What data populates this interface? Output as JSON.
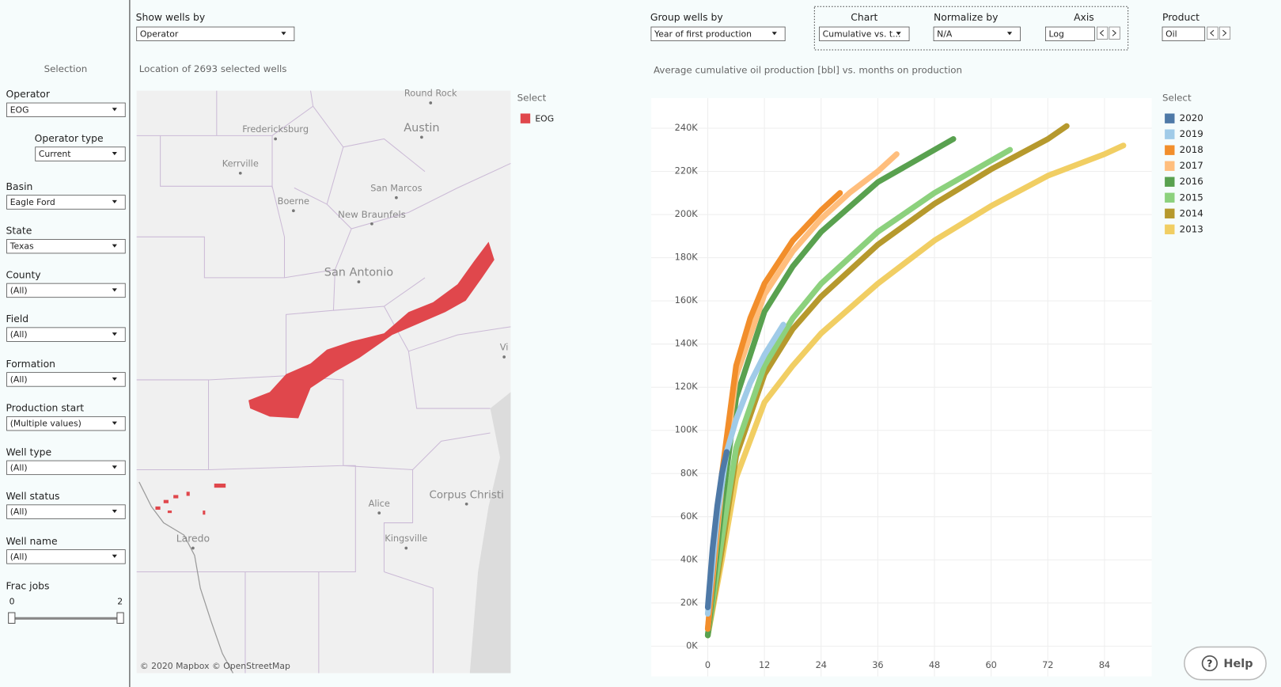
{
  "sidebar": {
    "title": "Selection",
    "filters": [
      {
        "label": "Operator",
        "value": "EOG"
      },
      {
        "label": "Operator type",
        "value": "Current"
      },
      {
        "label": "Basin",
        "value": "Eagle Ford"
      },
      {
        "label": "State",
        "value": "Texas"
      },
      {
        "label": "County",
        "value": "(All)"
      },
      {
        "label": "Field",
        "value": "(All)"
      },
      {
        "label": "Formation",
        "value": "(All)"
      },
      {
        "label": "Production start",
        "value": "(Multiple values)"
      },
      {
        "label": "Well type",
        "value": "(All)"
      },
      {
        "label": "Well status",
        "value": "(All)"
      },
      {
        "label": "Well name",
        "value": "(All)"
      }
    ],
    "frac_jobs": {
      "label": "Frac jobs",
      "min": 0,
      "max": 2
    }
  },
  "controls": [
    {
      "label": "Show wells by",
      "value": "Operator"
    },
    {
      "label": "Group wells by",
      "value": "Year of first production"
    },
    {
      "label": "Chart",
      "value": "Cumulative vs. t..."
    },
    {
      "label": "Normalize by",
      "value": "N/A"
    },
    {
      "label": "Axis",
      "value": "Log"
    },
    {
      "label": "Product",
      "value": "Oil"
    }
  ],
  "map": {
    "title": "Location of 2693 selected wells",
    "legend_title": "Select",
    "legend": [
      {
        "name": "EOG",
        "color": "#e0474c"
      }
    ],
    "places": [
      "Round Rock",
      "Austin",
      "Fredericksburg",
      "Kerrville",
      "San Marcos",
      "Boerne",
      "New Braunfels",
      "San Antonio",
      "Vi",
      "Corpus Christi",
      "Alice",
      "Kingsville",
      "Laredo"
    ],
    "attribution": "© 2020 Mapbox  © OpenStreetMap"
  },
  "help": "Help",
  "chart_data": {
    "type": "line",
    "title": "Average cumulative oil production [bbl] vs. months on production",
    "legend_title": "Select",
    "xlim": [
      -12,
      94
    ],
    "xticks": [
      0,
      12,
      24,
      36,
      48,
      60,
      72,
      84
    ],
    "ylim": [
      -14000,
      254000
    ],
    "yticks": [
      {
        "value": 0,
        "label": "0K"
      },
      {
        "value": 20000,
        "label": "20K"
      },
      {
        "value": 40000,
        "label": "40K"
      },
      {
        "value": 60000,
        "label": "60K"
      },
      {
        "value": 80000,
        "label": "80K"
      },
      {
        "value": 100000,
        "label": "100K"
      },
      {
        "value": 120000,
        "label": "120K"
      },
      {
        "value": 140000,
        "label": "140K"
      },
      {
        "value": 160000,
        "label": "160K"
      },
      {
        "value": 180000,
        "label": "180K"
      },
      {
        "value": 200000,
        "label": "200K"
      },
      {
        "value": 220000,
        "label": "220K"
      },
      {
        "value": 240000,
        "label": "240K"
      }
    ],
    "grid": true,
    "series": [
      {
        "name": "2020",
        "color": "#4e79a7",
        "x": [
          0,
          1,
          2,
          3,
          4
        ],
        "values": [
          18000,
          45000,
          65000,
          80000,
          90000
        ]
      },
      {
        "name": "2019",
        "color": "#a0cbe8",
        "x": [
          0,
          2,
          4,
          6,
          9,
          12,
          16
        ],
        "values": [
          15000,
          60000,
          90000,
          105000,
          122000,
          135000,
          149000
        ]
      },
      {
        "name": "2018",
        "color": "#f28e2b",
        "x": [
          0,
          3,
          6,
          9,
          12,
          18,
          24,
          28
        ],
        "values": [
          8000,
          80000,
          130000,
          152000,
          168000,
          188000,
          202000,
          210000
        ]
      },
      {
        "name": "2017",
        "color": "#ffbe7d",
        "x": [
          0,
          3,
          6,
          12,
          18,
          24,
          30,
          36,
          40
        ],
        "values": [
          8000,
          75000,
          125000,
          163000,
          183000,
          198000,
          210000,
          220000,
          228000
        ]
      },
      {
        "name": "2016",
        "color": "#59a14f",
        "x": [
          0,
          3,
          6,
          12,
          18,
          24,
          36,
          48,
          52
        ],
        "values": [
          5000,
          65000,
          115000,
          155000,
          176000,
          192000,
          215000,
          230000,
          235000
        ]
      },
      {
        "name": "2015",
        "color": "#8cd17d",
        "x": [
          0,
          3,
          6,
          12,
          18,
          24,
          36,
          48,
          60,
          64
        ],
        "values": [
          5000,
          50000,
          92000,
          130000,
          152000,
          168000,
          192000,
          210000,
          225000,
          230000
        ]
      },
      {
        "name": "2014",
        "color": "#b6992d",
        "x": [
          0,
          3,
          6,
          12,
          18,
          24,
          36,
          48,
          60,
          72,
          76
        ],
        "values": [
          5000,
          45000,
          88000,
          126000,
          147000,
          162000,
          186000,
          205000,
          221000,
          235000,
          241000
        ]
      },
      {
        "name": "2013",
        "color": "#f1ce63",
        "x": [
          0,
          3,
          6,
          12,
          18,
          24,
          36,
          48,
          60,
          72,
          84,
          88
        ],
        "values": [
          5000,
          40000,
          78000,
          113000,
          130000,
          145000,
          168000,
          188000,
          204000,
          218000,
          228000,
          232000
        ]
      }
    ]
  }
}
